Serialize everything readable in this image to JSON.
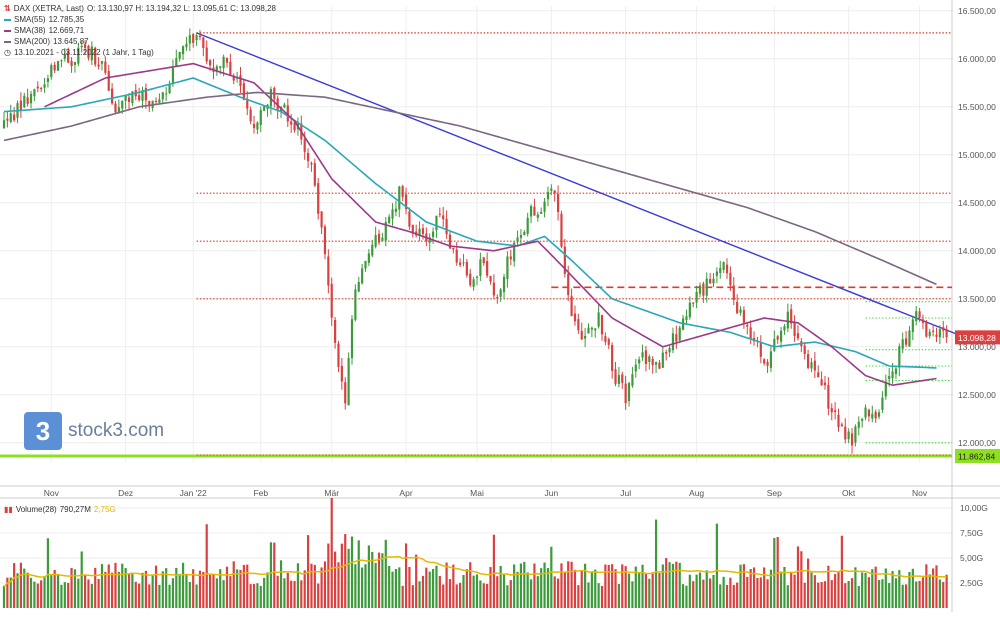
{
  "chart_data": {
    "type": "candlestick",
    "instrument": "DAX (XETRA, Last)",
    "ohlc_label": "O: 13.130,97  H: 13.194,32  L: 13.095,61  C: 13.098,28",
    "timeframe_label": "13.10.2021 - 03.11.2022  (1 Jahr, 1 Tag)",
    "y_ticks": [
      12000,
      12500,
      13000,
      13500,
      14000,
      14500,
      15000,
      15500,
      16000,
      16500
    ],
    "y_tick_labels": [
      "12.000,00",
      "12.500,00",
      "13.000,00",
      "13.500,00",
      "14.000,00",
      "14.500,00",
      "15.000,00",
      "15.500,00",
      "16.000,00",
      "16.500,00"
    ],
    "ylim": [
      11800,
      16550
    ],
    "x_month_labels": [
      "Nov",
      "Dez",
      "Jan '22",
      "Feb",
      "Mär",
      "Apr",
      "Mai",
      "Jun",
      "Jul",
      "Aug",
      "Sep",
      "Okt",
      "Nov"
    ],
    "x_month_index": [
      14,
      36,
      56,
      76,
      97,
      119,
      140,
      162,
      184,
      205,
      228,
      250,
      271
    ],
    "num_days": 280,
    "last_price": 13098.28,
    "last_price_label": "13.098,28",
    "support_price": 11862.84,
    "support_label": "11.862,84",
    "price_anchors": [
      [
        0,
        15300
      ],
      [
        5,
        15500
      ],
      [
        14,
        15900
      ],
      [
        25,
        16100
      ],
      [
        30,
        15850
      ],
      [
        33,
        15400
      ],
      [
        38,
        15700
      ],
      [
        45,
        15500
      ],
      [
        52,
        16000
      ],
      [
        57,
        16280
      ],
      [
        62,
        15900
      ],
      [
        65,
        16000
      ],
      [
        70,
        15700
      ],
      [
        74,
        15300
      ],
      [
        79,
        15600
      ],
      [
        84,
        15400
      ],
      [
        88,
        15200
      ],
      [
        92,
        14700
      ],
      [
        95,
        13900
      ],
      [
        98,
        13000
      ],
      [
        101,
        12500
      ],
      [
        104,
        13600
      ],
      [
        108,
        14000
      ],
      [
        114,
        14300
      ],
      [
        117,
        14600
      ],
      [
        121,
        14200
      ],
      [
        125,
        14100
      ],
      [
        129,
        14400
      ],
      [
        133,
        14000
      ],
      [
        138,
        13700
      ],
      [
        142,
        13900
      ],
      [
        146,
        13500
      ],
      [
        151,
        14100
      ],
      [
        156,
        14400
      ],
      [
        163,
        14600
      ],
      [
        167,
        13500
      ],
      [
        171,
        13000
      ],
      [
        176,
        13300
      ],
      [
        181,
        12700
      ],
      [
        184,
        12500
      ],
      [
        188,
        12900
      ],
      [
        194,
        12800
      ],
      [
        200,
        13200
      ],
      [
        205,
        13500
      ],
      [
        212,
        13900
      ],
      [
        216,
        13500
      ],
      [
        220,
        13200
      ],
      [
        226,
        12800
      ],
      [
        232,
        13400
      ],
      [
        237,
        12900
      ],
      [
        242,
        12600
      ],
      [
        247,
        12200
      ],
      [
        251,
        12000
      ],
      [
        255,
        12400
      ],
      [
        258,
        12200
      ],
      [
        262,
        12700
      ],
      [
        266,
        13000
      ],
      [
        270,
        13300
      ],
      [
        273,
        13194
      ],
      [
        276,
        13098
      ]
    ],
    "indicators": [
      {
        "name": "SMA(55)",
        "value": "12.785,35",
        "color": "#2aa7b8",
        "anchors": [
          [
            0,
            15450
          ],
          [
            20,
            15500
          ],
          [
            40,
            15650
          ],
          [
            56,
            15800
          ],
          [
            70,
            15600
          ],
          [
            82,
            15450
          ],
          [
            95,
            15150
          ],
          [
            110,
            14700
          ],
          [
            125,
            14300
          ],
          [
            140,
            14100
          ],
          [
            152,
            14050
          ],
          [
            160,
            14150
          ],
          [
            168,
            13900
          ],
          [
            180,
            13500
          ],
          [
            200,
            13250
          ],
          [
            215,
            13150
          ],
          [
            228,
            13000
          ],
          [
            240,
            13050
          ],
          [
            252,
            12950
          ],
          [
            262,
            12800
          ],
          [
            276,
            12780
          ]
        ]
      },
      {
        "name": "SMA(38)",
        "value": "12.669,71",
        "color": "#9b3a8a",
        "anchors": [
          [
            12,
            15500
          ],
          [
            30,
            15800
          ],
          [
            56,
            15950
          ],
          [
            74,
            15750
          ],
          [
            86,
            15350
          ],
          [
            97,
            14750
          ],
          [
            110,
            14300
          ],
          [
            120,
            14200
          ],
          [
            132,
            14050
          ],
          [
            145,
            14000
          ],
          [
            158,
            14100
          ],
          [
            165,
            13850
          ],
          [
            180,
            13300
          ],
          [
            195,
            13000
          ],
          [
            205,
            13100
          ],
          [
            215,
            13200
          ],
          [
            225,
            13300
          ],
          [
            235,
            13250
          ],
          [
            245,
            13000
          ],
          [
            255,
            12700
          ],
          [
            263,
            12600
          ],
          [
            276,
            12670
          ]
        ]
      },
      {
        "name": "SMA(200)",
        "value": "13.645,87",
        "color": "#7a6880",
        "anchors": [
          [
            0,
            15150
          ],
          [
            20,
            15300
          ],
          [
            40,
            15500
          ],
          [
            60,
            15600
          ],
          [
            75,
            15650
          ],
          [
            95,
            15600
          ],
          [
            115,
            15450
          ],
          [
            135,
            15300
          ],
          [
            155,
            15100
          ],
          [
            175,
            14900
          ],
          [
            200,
            14650
          ],
          [
            220,
            14450
          ],
          [
            240,
            14200
          ],
          [
            260,
            13900
          ],
          [
            276,
            13650
          ]
        ]
      }
    ],
    "trend_line": {
      "from": [
        57,
        16270
      ],
      "to": [
        285,
        13090
      ]
    },
    "resistance_levels": [
      16270,
      14600,
      14100,
      13500
    ],
    "dashed_level": {
      "value": 13620,
      "from_index": 162
    },
    "green_levels": [
      13470,
      13300,
      12970,
      12800,
      12650,
      12000
    ],
    "volume": {
      "label": "Volume(28)",
      "value": "790,27M",
      "avg_value": "2,75G",
      "y_ticks": [
        2.5,
        5.0,
        7.5,
        10.0
      ],
      "y_tick_labels": [
        "2,50G",
        "5,00G",
        "7,50G",
        "10,00G"
      ],
      "ylim": [
        0,
        10.8
      ],
      "avg_color": "#e8b800",
      "up_color": "#3c9a3c",
      "down_color": "#d94040"
    }
  },
  "branding": {
    "logo_glyph": "3",
    "logo_text": "stock3.com"
  },
  "colors": {
    "up": "#3c9a3c",
    "down": "#d94040",
    "trend": "#3a3ad8",
    "resistance": "#e03a2a",
    "support": "#8ce020",
    "green_level": "#44dd44",
    "grid": "#eeeeee"
  }
}
